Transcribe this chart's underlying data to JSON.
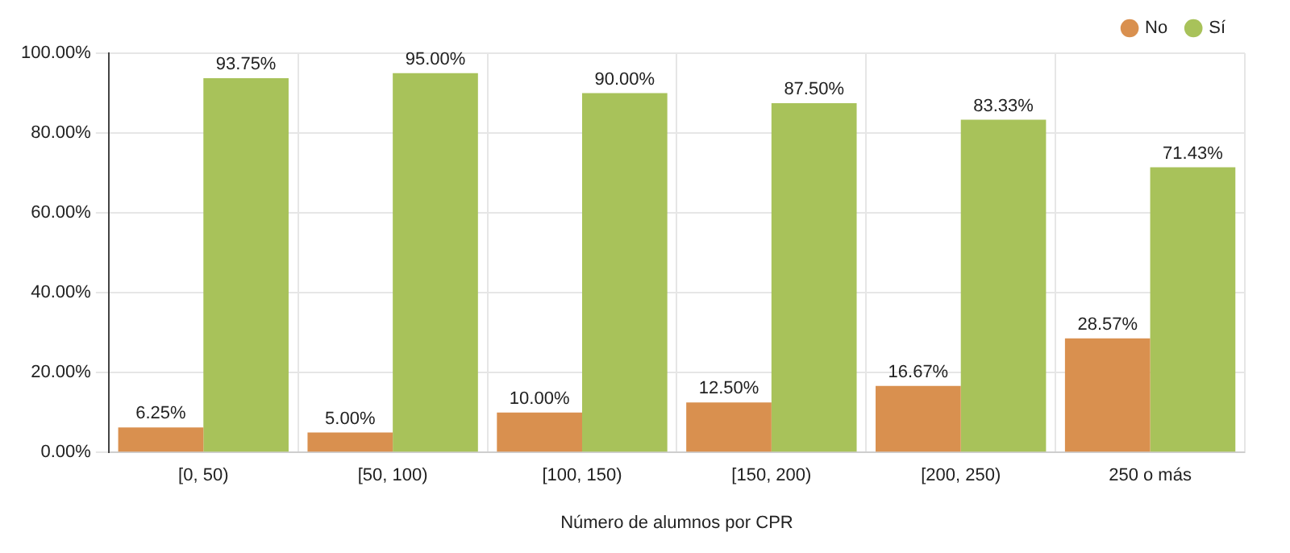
{
  "chart_data": {
    "type": "bar",
    "xlabel": "Número de alumnos por CPR",
    "categories": [
      "[0, 50)",
      "[50, 100)",
      "[100, 150)",
      "[150, 200)",
      "[200, 250)",
      "250 o más"
    ],
    "series": [
      {
        "name": "No",
        "color": "#d9904f",
        "values": [
          6.25,
          5.0,
          10.0,
          12.5,
          16.67,
          28.57
        ],
        "value_labels": [
          "6.25%",
          "5.00%",
          "10.00%",
          "12.50%",
          "16.67%",
          "28.57%"
        ]
      },
      {
        "name": "Sí",
        "color": "#a8c25a",
        "values": [
          93.75,
          95.0,
          90.0,
          87.5,
          83.33,
          71.43
        ],
        "value_labels": [
          "93.75%",
          "95.00%",
          "90.00%",
          "87.50%",
          "83.33%",
          "71.43%"
        ]
      }
    ],
    "ylim": [
      0,
      100
    ],
    "yticks": [
      {
        "value": 0,
        "label": "0.00%"
      },
      {
        "value": 20,
        "label": "20.00%"
      },
      {
        "value": 40,
        "label": "40.00%"
      },
      {
        "value": 60,
        "label": "60.00%"
      },
      {
        "value": 80,
        "label": "80.00%"
      },
      {
        "value": 100,
        "label": "100.00%"
      }
    ],
    "grid": true,
    "legend": "top right"
  }
}
